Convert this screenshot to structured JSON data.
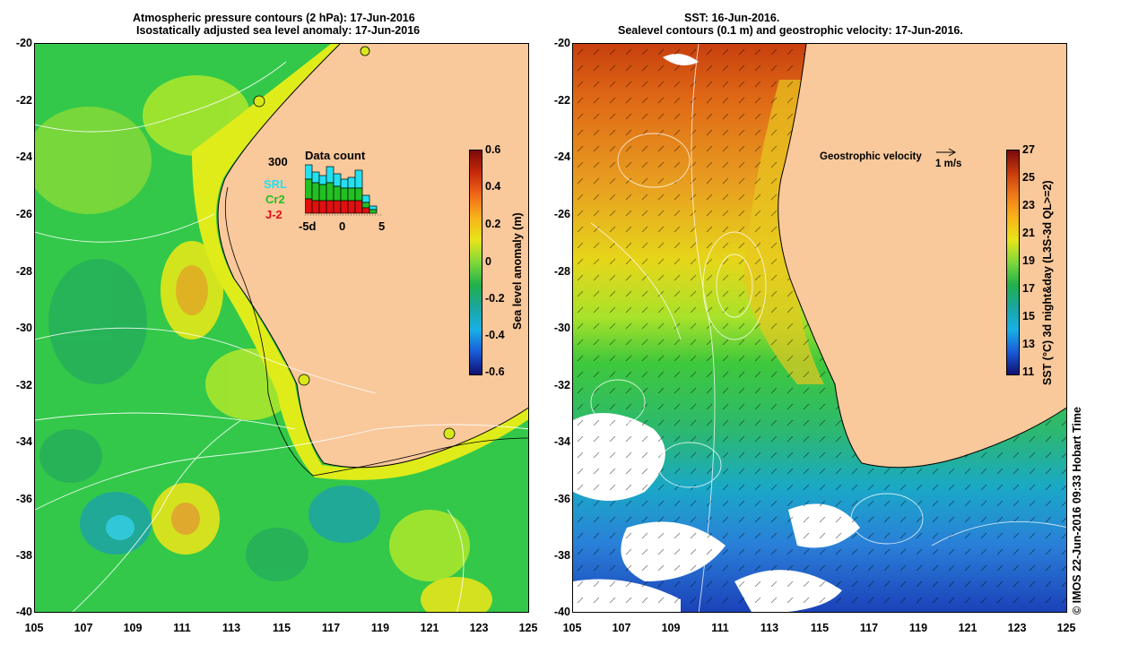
{
  "left_panel": {
    "title_line1": "Atmospheric pressure contours (2 hPa): 17-Jun-2016",
    "title_line2": "Isostatically adjusted sea level anomaly: 17-Jun-2016",
    "y_ticks": [
      "-20",
      "-22",
      "-24",
      "-26",
      "-28",
      "-30",
      "-32",
      "-34",
      "-36",
      "-38",
      "-40"
    ],
    "x_ticks": [
      "105",
      "107",
      "109",
      "111",
      "113",
      "115",
      "117",
      "119",
      "121",
      "123",
      "125"
    ],
    "colorbar": {
      "label": "Sea level anomaly (m)",
      "ticks": [
        "0.6",
        "0.4",
        "0.2",
        "0",
        "-0.2",
        "-0.4",
        "-0.6"
      ]
    },
    "inset": {
      "title": "Data count",
      "max_label": "300",
      "legend": [
        {
          "name": "SRL",
          "color": "#22e0f0"
        },
        {
          "name": "Cr2",
          "color": "#22c022"
        },
        {
          "name": "J-2",
          "color": "#e01010"
        }
      ],
      "x_ticks": [
        "-5d",
        "0",
        "5"
      ]
    }
  },
  "right_panel": {
    "title_line1": "SST: 16-Jun-2016.",
    "title_line2": "Sealevel contours (0.1 m) and geostrophic velocity: 17-Jun-2016.",
    "y_ticks": [
      "-20",
      "-22",
      "-24",
      "-26",
      "-28",
      "-30",
      "-32",
      "-34",
      "-36",
      "-38",
      "-40"
    ],
    "x_ticks": [
      "105",
      "107",
      "109",
      "111",
      "113",
      "115",
      "117",
      "119",
      "121",
      "123",
      "125"
    ],
    "velocity_legend": "Geostrophic velocity",
    "velocity_scale": "1 m/s",
    "colorbar": {
      "label": "SST (°C) 3d night&day (L3S-3d QL>=2)",
      "ticks": [
        "27",
        "25",
        "23",
        "21",
        "19",
        "17",
        "15",
        "13",
        "11"
      ]
    }
  },
  "credit": "© IMOS 22-Jun-2016 09:33 Hobart Time",
  "colors": {
    "land": "#f9c89b",
    "ocean_green": "#33c84a",
    "ocean_yellow": "#d7ee1a",
    "sst_red": "#d24a12",
    "sst_orange": "#e89a20",
    "sst_blue": "#2a7fd8"
  }
}
